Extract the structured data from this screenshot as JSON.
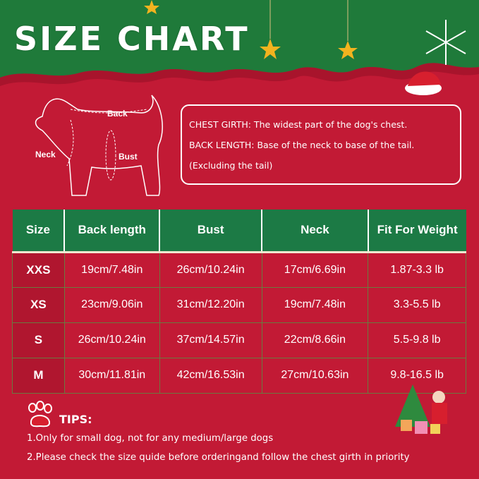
{
  "title": "SIZE CHART",
  "diagram": {
    "back": "Back",
    "neck": "Neck",
    "bust": "Bust"
  },
  "info": {
    "line1": "CHEST GIRTH: The widest part of the dog's chest.",
    "line2": "BACK LENGTH: Base of the neck to base of the tail.",
    "line3": "(Excluding the tail)"
  },
  "table": {
    "headers": [
      "Size",
      "Back length",
      "Bust",
      "Neck",
      "Fit For Weight"
    ],
    "rows": [
      [
        "XXS",
        "19cm/7.48in",
        "26cm/10.24in",
        "17cm/6.69in",
        "1.87-3.3 lb"
      ],
      [
        "XS",
        "23cm/9.06in",
        "31cm/12.20in",
        "19cm/7.48in",
        "3.3-5.5 lb"
      ],
      [
        "S",
        "26cm/10.24in",
        "37cm/14.57in",
        "22cm/8.66in",
        "5.5-9.8 lb"
      ],
      [
        "M",
        "30cm/11.81in",
        "42cm/16.53in",
        "27cm/10.63in",
        "9.8-16.5 lb"
      ]
    ]
  },
  "tips": {
    "title": "TIPS:",
    "items": [
      "1.Only for small dog, not for any medium/large dogs",
      "2.Please check the size quide before orderingand follow the chest girth in priority"
    ]
  },
  "colors": {
    "background": "#c21a35",
    "header_green": "#1c7a45",
    "banner_green": "#1f7a3a"
  }
}
